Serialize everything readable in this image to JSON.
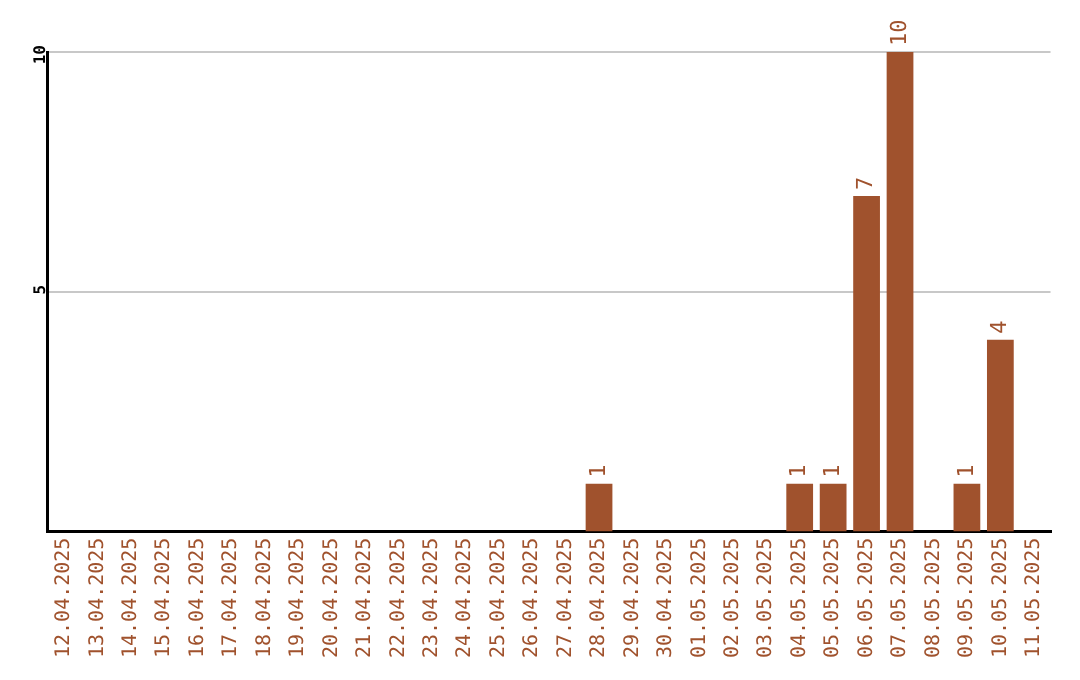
{
  "chart_data": {
    "type": "bar",
    "categories": [
      "12.04.2025",
      "13.04.2025",
      "14.04.2025",
      "15.04.2025",
      "16.04.2025",
      "17.04.2025",
      "18.04.2025",
      "19.04.2025",
      "20.04.2025",
      "21.04.2025",
      "22.04.2025",
      "23.04.2025",
      "24.04.2025",
      "25.04.2025",
      "26.04.2025",
      "27.04.2025",
      "28.04.2025",
      "29.04.2025",
      "30.04.2025",
      "01.05.2025",
      "02.05.2025",
      "03.05.2025",
      "04.05.2025",
      "05.05.2025",
      "06.05.2025",
      "07.05.2025",
      "08.05.2025",
      "09.05.2025",
      "10.05.2025",
      "11.05.2025"
    ],
    "values": [
      0,
      0,
      0,
      0,
      0,
      0,
      0,
      0,
      0,
      0,
      0,
      0,
      0,
      0,
      0,
      0,
      1,
      0,
      0,
      0,
      0,
      0,
      1,
      1,
      7,
      10,
      0,
      1,
      4,
      0
    ],
    "value_labels": [
      null,
      null,
      null,
      null,
      null,
      null,
      null,
      null,
      null,
      null,
      null,
      null,
      null,
      null,
      null,
      null,
      "1",
      null,
      null,
      null,
      null,
      null,
      "1",
      "1",
      "7",
      "10",
      null,
      "1",
      "4",
      null
    ],
    "color": "#a0522d",
    "ylim": [
      0,
      10
    ],
    "yticks": [
      5,
      10
    ],
    "grid": "y",
    "legend": false
  }
}
